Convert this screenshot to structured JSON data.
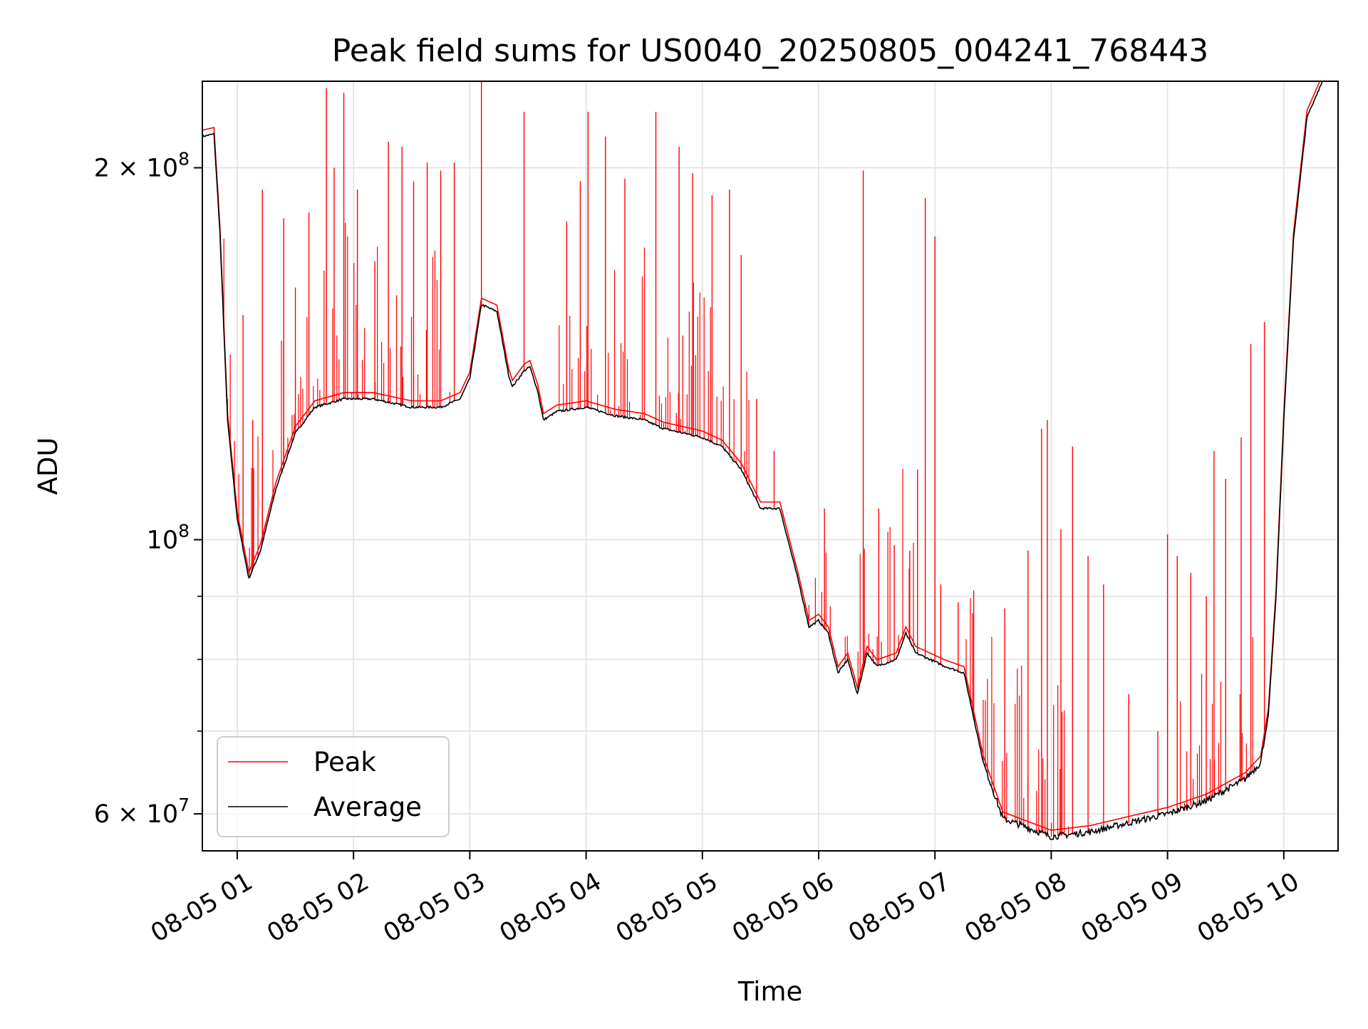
{
  "chart_data": {
    "type": "line",
    "title": "Peak field sums for US0040_20250805_004241_768443",
    "xlabel": "Time",
    "ylabel": "ADU",
    "y_scale": "log",
    "ylim": [
      56000000,
      235000000
    ],
    "xlim": [
      "2025-08-05 00:42",
      "2025-08-05 10:28"
    ],
    "grid": true,
    "legend_position": "lower-left",
    "x_ticks": [
      "08-05 01",
      "08-05 02",
      "08-05 03",
      "08-05 04",
      "08-05 05",
      "08-05 06",
      "08-05 07",
      "08-05 08",
      "08-05 09",
      "08-05 10"
    ],
    "y_ticks": [
      {
        "value": 60000000,
        "base": "6 × 10",
        "exp": "7"
      },
      {
        "value": 100000000,
        "base": "10",
        "exp": "8"
      },
      {
        "value": 200000000,
        "base": "2 × 10",
        "exp": "8"
      }
    ],
    "series": [
      {
        "name": "Average",
        "color": "#000000",
        "points": [
          [
            "2025-08-05 00:42",
            212000000
          ],
          [
            "2025-08-05 00:48",
            213000000
          ],
          [
            "2025-08-05 00:51",
            178000000
          ],
          [
            "2025-08-05 00:55",
            125000000
          ],
          [
            "2025-08-05 01:00",
            104000000
          ],
          [
            "2025-08-05 01:06",
            93000000
          ],
          [
            "2025-08-05 01:12",
            98000000
          ],
          [
            "2025-08-05 01:20",
            110000000
          ],
          [
            "2025-08-05 01:30",
            122000000
          ],
          [
            "2025-08-05 01:40",
            128000000
          ],
          [
            "2025-08-05 01:55",
            130000000
          ],
          [
            "2025-08-05 02:10",
            130000000
          ],
          [
            "2025-08-05 02:30",
            128000000
          ],
          [
            "2025-08-05 02:45",
            128000000
          ],
          [
            "2025-08-05 02:55",
            130000000
          ],
          [
            "2025-08-05 03:00",
            135000000
          ],
          [
            "2025-08-05 03:06",
            155000000
          ],
          [
            "2025-08-05 03:14",
            153000000
          ],
          [
            "2025-08-05 03:20",
            136000000
          ],
          [
            "2025-08-05 03:22",
            133000000
          ],
          [
            "2025-08-05 03:28",
            137000000
          ],
          [
            "2025-08-05 03:31",
            138000000
          ],
          [
            "2025-08-05 03:35",
            132000000
          ],
          [
            "2025-08-05 03:38",
            125000000
          ],
          [
            "2025-08-05 03:45",
            127000000
          ],
          [
            "2025-08-05 04:00",
            128000000
          ],
          [
            "2025-08-05 04:15",
            126000000
          ],
          [
            "2025-08-05 04:30",
            125000000
          ],
          [
            "2025-08-05 04:40",
            123000000
          ],
          [
            "2025-08-05 05:00",
            121000000
          ],
          [
            "2025-08-05 05:10",
            119000000
          ],
          [
            "2025-08-05 05:20",
            114000000
          ],
          [
            "2025-08-05 05:30",
            106000000
          ],
          [
            "2025-08-05 05:40",
            106000000
          ],
          [
            "2025-08-05 05:50",
            92000000
          ],
          [
            "2025-08-05 05:55",
            85000000
          ],
          [
            "2025-08-05 06:00",
            86000000
          ],
          [
            "2025-08-05 06:05",
            84000000
          ],
          [
            "2025-08-05 06:10",
            78000000
          ],
          [
            "2025-08-05 06:15",
            80000000
          ],
          [
            "2025-08-05 06:20",
            75000000
          ],
          [
            "2025-08-05 06:25",
            81000000
          ],
          [
            "2025-08-05 06:30",
            79000000
          ],
          [
            "2025-08-05 06:40",
            80000000
          ],
          [
            "2025-08-05 06:45",
            84000000
          ],
          [
            "2025-08-05 06:50",
            81000000
          ],
          [
            "2025-08-05 07:05",
            79000000
          ],
          [
            "2025-08-05 07:15",
            78000000
          ],
          [
            "2025-08-05 07:25",
            66000000
          ],
          [
            "2025-08-05 07:35",
            59500000
          ],
          [
            "2025-08-05 08:00",
            57500000
          ],
          [
            "2025-08-05 08:20",
            58000000
          ],
          [
            "2025-08-05 08:40",
            59000000
          ],
          [
            "2025-08-05 09:00",
            60000000
          ],
          [
            "2025-08-05 09:20",
            61500000
          ],
          [
            "2025-08-05 09:40",
            64000000
          ],
          [
            "2025-08-05 09:48",
            66000000
          ],
          [
            "2025-08-05 09:52",
            72000000
          ],
          [
            "2025-08-05 09:56",
            90000000
          ],
          [
            "2025-08-05 10:00",
            125000000
          ],
          [
            "2025-08-05 10:05",
            175000000
          ],
          [
            "2025-08-05 10:12",
            220000000
          ],
          [
            "2025-08-05 10:20",
            235000000
          ]
        ]
      },
      {
        "name": "Peak",
        "color": "#ff0000",
        "spike_tops": [
          [
            "2025-08-05 00:55",
            130000000
          ],
          [
            "2025-08-05 01:03",
            152000000
          ],
          [
            "2025-08-05 01:08",
            125000000
          ],
          [
            "2025-08-05 01:13",
            192000000
          ],
          [
            "2025-08-05 01:24",
            182000000
          ],
          [
            "2025-08-05 01:30",
            160000000
          ],
          [
            "2025-08-05 01:37",
            184000000
          ],
          [
            "2025-08-05 01:46",
            232000000
          ],
          [
            "2025-08-05 01:50",
            200000000
          ],
          [
            "2025-08-05 01:55",
            230000000
          ],
          [
            "2025-08-05 02:02",
            192000000
          ],
          [
            "2025-08-05 02:11",
            168000000
          ],
          [
            "2025-08-05 02:18",
            210000000
          ],
          [
            "2025-08-05 02:25",
            208000000
          ],
          [
            "2025-08-05 02:31",
            195000000
          ],
          [
            "2025-08-05 02:38",
            202000000
          ],
          [
            "2025-08-05 02:45",
            199000000
          ],
          [
            "2025-08-05 02:52",
            202000000
          ],
          [
            "2025-08-05 03:06",
            235000000
          ],
          [
            "2025-08-05 03:28",
            222000000
          ],
          [
            "2025-08-05 03:50",
            181000000
          ],
          [
            "2025-08-05 03:57",
            195000000
          ],
          [
            "2025-08-05 04:01",
            222000000
          ],
          [
            "2025-08-05 04:10",
            212000000
          ],
          [
            "2025-08-05 04:20",
            196000000
          ],
          [
            "2025-08-05 04:36",
            222000000
          ],
          [
            "2025-08-05 04:48",
            208000000
          ],
          [
            "2025-08-05 04:55",
            198000000
          ],
          [
            "2025-08-05 05:05",
            190000000
          ],
          [
            "2025-08-05 05:14",
            192000000
          ],
          [
            "2025-08-05 05:20",
            170000000
          ],
          [
            "2025-08-05 05:28",
            130000000
          ],
          [
            "2025-08-05 05:37",
            118000000
          ],
          [
            "2025-08-05 06:03",
            106000000
          ],
          [
            "2025-08-05 06:23",
            199000000
          ],
          [
            "2025-08-05 06:31",
            106000000
          ],
          [
            "2025-08-05 06:39",
            99000000
          ],
          [
            "2025-08-05 06:47",
            98000000
          ],
          [
            "2025-08-05 06:51",
            114000000
          ],
          [
            "2025-08-05 06:55",
            189000000
          ],
          [
            "2025-08-05 07:00",
            176000000
          ],
          [
            "2025-08-05 07:03",
            92000000
          ],
          [
            "2025-08-05 07:12",
            89000000
          ],
          [
            "2025-08-05 07:20",
            91000000
          ],
          [
            "2025-08-05 07:36",
            88000000
          ],
          [
            "2025-08-05 07:48",
            98000000
          ],
          [
            "2025-08-05 07:55",
            123000000
          ],
          [
            "2025-08-05 07:58",
            125000000
          ],
          [
            "2025-08-05 08:05",
            102000000
          ],
          [
            "2025-08-05 08:11",
            119000000
          ],
          [
            "2025-08-05 08:19",
            97000000
          ],
          [
            "2025-08-05 08:27",
            92000000
          ],
          [
            "2025-08-05 08:40",
            75000000
          ],
          [
            "2025-08-05 08:55",
            70000000
          ],
          [
            "2025-08-05 09:00",
            101000000
          ],
          [
            "2025-08-05 09:05",
            97000000
          ],
          [
            "2025-08-05 09:12",
            94000000
          ],
          [
            "2025-08-05 09:20",
            90000000
          ],
          [
            "2025-08-05 09:24",
            118000000
          ],
          [
            "2025-08-05 09:30",
            112000000
          ],
          [
            "2025-08-05 09:38",
            121000000
          ],
          [
            "2025-08-05 09:43",
            144000000
          ],
          [
            "2025-08-05 09:50",
            150000000
          ]
        ]
      }
    ]
  }
}
